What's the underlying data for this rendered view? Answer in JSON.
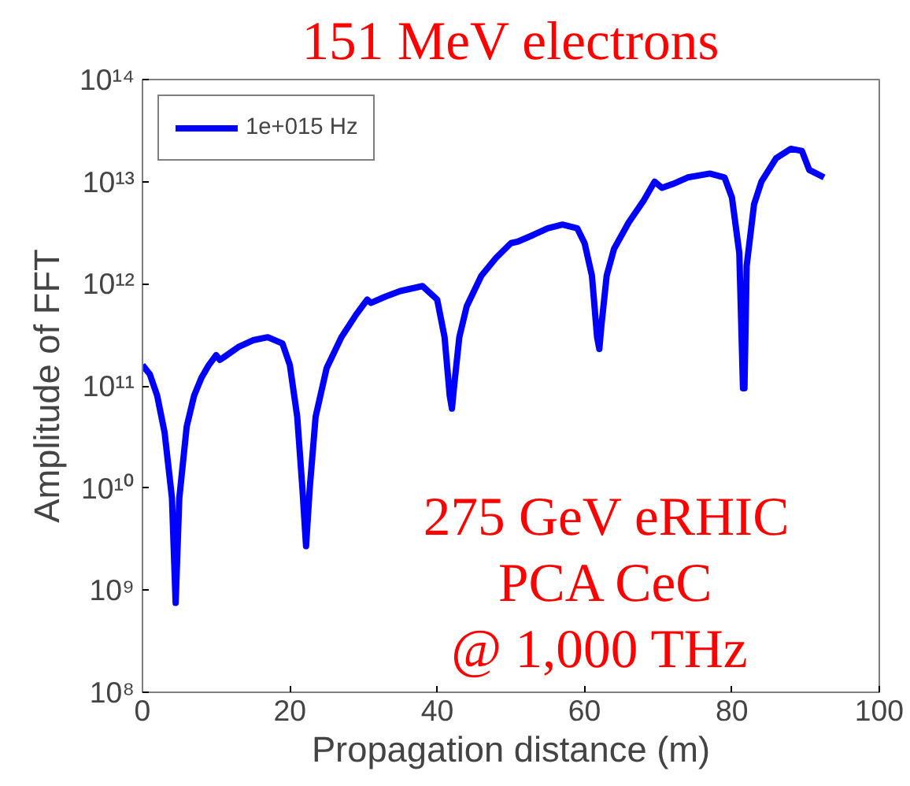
{
  "chart_data": {
    "type": "line",
    "title": "151 MeV electrons",
    "xlabel": "Propagation distance (m)",
    "ylabel": "Amplitude of FFT",
    "annotations": [
      "275 GeV eRHIC",
      "PCA CeC",
      "@  1,000 THz"
    ],
    "log": "y",
    "grid": false,
    "legend": "top left",
    "marker": "none",
    "line_style": "solid",
    "xlim": [
      0,
      100
    ],
    "xticks": [
      0,
      20,
      40,
      60,
      80,
      100
    ],
    "ylim": [
      100000000.0,
      100000000000000.0
    ],
    "yticks": [
      {
        "value": 100000000.0,
        "label": "10⁸"
      },
      {
        "value": 1000000000.0,
        "label": "10⁹"
      },
      {
        "value": 10000000000.0,
        "label": "10¹⁰"
      },
      {
        "value": 100000000000.0,
        "label": "10¹¹"
      },
      {
        "value": 1000000000000.0,
        "label": "10¹²"
      },
      {
        "value": 10000000000000.0,
        "label": "10¹³"
      },
      {
        "value": 100000000000000.0,
        "label": "10¹⁴"
      }
    ],
    "x": [
      0,
      1,
      2,
      3,
      4,
      4.5,
      5,
      6,
      7,
      8,
      9,
      10,
      10.5,
      11,
      13,
      15,
      17,
      19,
      20,
      21,
      21.7,
      22.2,
      22.7,
      23.5,
      25,
      27,
      29,
      30.5,
      31,
      33,
      35,
      38,
      40,
      41,
      41.7,
      42,
      42.3,
      43,
      44,
      46,
      48,
      50,
      51,
      53,
      55,
      57,
      59,
      60,
      61,
      61.7,
      62,
      62.3,
      63,
      64,
      66,
      68,
      69.5,
      70.5,
      72,
      74,
      77,
      79,
      80,
      81,
      81.5,
      81.7,
      82,
      83,
      84,
      86,
      88,
      89.5,
      90.5,
      91,
      92.5
    ],
    "series": [
      {
        "name": "1e+015 Hz",
        "color": "#0000ff",
        "values": [
          160000000000.0,
          130000000000.0,
          80000000000.0,
          35000000000.0,
          8000000000.0,
          750000000.0,
          8000000000.0,
          40000000000.0,
          80000000000.0,
          120000000000.0,
          160000000000.0,
          200000000000.0,
          180000000000.0,
          190000000000.0,
          240000000000.0,
          280000000000.0,
          300000000000.0,
          260000000000.0,
          160000000000.0,
          50000000000.0,
          10000000000.0,
          2700000000.0,
          10000000000.0,
          50000000000.0,
          150000000000.0,
          300000000000.0,
          500000000000.0,
          700000000000.0,
          650000000000.0,
          750000000000.0,
          850000000000.0,
          950000000000.0,
          700000000000.0,
          300000000000.0,
          80000000000.0,
          60000000000.0,
          100000000000.0,
          300000000000.0,
          600000000000.0,
          1200000000000.0,
          1800000000000.0,
          2500000000000.0,
          2600000000000.0,
          3000000000000.0,
          3500000000000.0,
          3800000000000.0,
          3500000000000.0,
          2500000000000.0,
          1200000000000.0,
          300000000000.0,
          230000000000.0,
          400000000000.0,
          1200000000000.0,
          2200000000000.0,
          4000000000000.0,
          6500000000000.0,
          10000000000000.0,
          8700000000000.0,
          9500000000000.0,
          11000000000000.0,
          12000000000000.0,
          11000000000000.0,
          7000000000000.0,
          2000000000000.0,
          95000000000.0,
          95000000000.0,
          1500000000000.0,
          6000000000000.0,
          10000000000000.0,
          17000000000000.0,
          21000000000000.0,
          20000000000000.0,
          13000000000000.0,
          12500000000000.0,
          11000000000000.0
        ]
      }
    ]
  }
}
